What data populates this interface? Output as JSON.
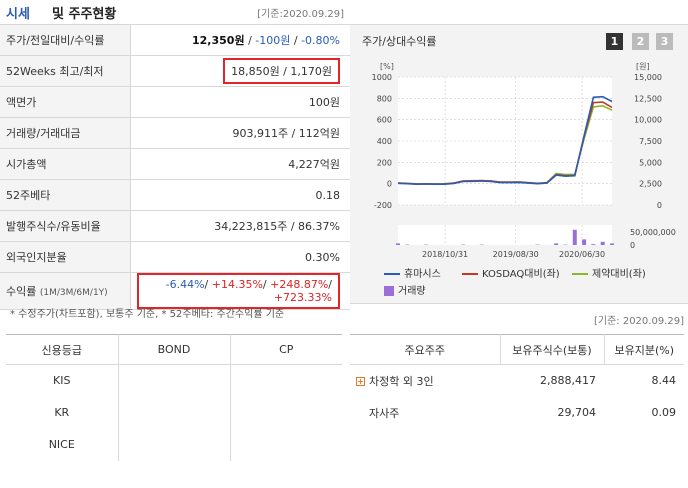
{
  "header": {
    "title_a": "시세",
    "title_b": "및 주주현황",
    "date": "[기준:2020.09.29]"
  },
  "stats": [
    {
      "key": "주가/전일대비/수익률",
      "price": "12,350원",
      "sep1": " / ",
      "change": "-100원",
      "sep2": " / ",
      "rate": "-0.80%"
    },
    {
      "key": "52Weeks 최고/최저",
      "value": "18,850원 / 1,170원"
    },
    {
      "key": "액면가",
      "value": "100원"
    },
    {
      "key": "거래량/거래대금",
      "value": "903,911주 / 112억원"
    },
    {
      "key": "시가총액",
      "value": "4,227억원"
    },
    {
      "key": "52주베타",
      "value": "0.18"
    },
    {
      "key": "발행주식수/유동비율",
      "value": "34,223,815주 / 86.37%"
    },
    {
      "key": "외국인지분율",
      "value": "0.30%"
    },
    {
      "key": "수익률",
      "key_sub": "(1M/3M/6M/1Y)",
      "r1": "-6.44%",
      "r2": "+14.35%",
      "r3": "+248.87%",
      "r4": "+723.33%"
    }
  ],
  "note": "* 수정주가(차트포함), 보통주 기준, * 52주베타: 주간수익률 기준",
  "chart_panel": {
    "title": "주가/상대수익률",
    "pages": [
      "1",
      "2",
      "3"
    ]
  },
  "chart_data": {
    "type": "line",
    "x_ticks": [
      "2018/10/31",
      "2019/08/30",
      "2020/06/30"
    ],
    "y_left_label": "[%]",
    "y_left_ticks": [
      "1000",
      "800",
      "600",
      "400",
      "200",
      "0",
      "-200"
    ],
    "y_right_label": "[원]",
    "y_right_ticks": [
      "15,000",
      "12,500",
      "10,000",
      "7,500",
      "5,000",
      "2,500",
      "0"
    ],
    "volume_tick": "50,000,000",
    "volume_zero": "0",
    "ylim_left": [
      -200,
      1000
    ],
    "ylim_right": [
      0,
      15000
    ],
    "series": [
      {
        "name": "휴마시스",
        "color": "#2b5bb6",
        "values": [
          3,
          0,
          -5,
          -3,
          -5,
          -5,
          2,
          20,
          22,
          25,
          20,
          10,
          10,
          12,
          5,
          0,
          5,
          80,
          70,
          75,
          450,
          810,
          815,
          770
        ]
      },
      {
        "name": "KOSDAQ대비(좌)",
        "color": "#c0392b",
        "values": [
          5,
          2,
          -3,
          -2,
          -3,
          -2,
          5,
          24,
          26,
          28,
          24,
          14,
          14,
          15,
          8,
          2,
          8,
          85,
          75,
          78,
          440,
          760,
          765,
          715
        ]
      },
      {
        "name": "제약대비(좌)",
        "color": "#8cb82b",
        "values": [
          6,
          3,
          -2,
          -1,
          -2,
          -1,
          6,
          26,
          28,
          30,
          26,
          16,
          16,
          17,
          10,
          4,
          10,
          95,
          85,
          88,
          420,
          720,
          730,
          690
        ]
      }
    ],
    "volume": {
      "name": "거래량",
      "color": "#9b6fd6",
      "values": [
        4,
        1,
        0,
        1,
        0,
        0,
        0,
        1,
        0,
        1,
        0,
        0,
        0,
        0,
        0,
        1,
        0,
        4,
        1,
        38,
        14,
        2,
        8,
        4
      ]
    },
    "legend": [
      "휴마시스",
      "KOSDAQ대비(좌)",
      "제약대비(좌)",
      "거래량"
    ]
  },
  "date2": "[기준: 2020.09.29]",
  "credit": {
    "headers": [
      "신용등급",
      "BOND",
      "CP"
    ],
    "rows": [
      "KIS",
      "KR",
      "NICE"
    ]
  },
  "holders": {
    "headers": [
      "주요주주",
      "보유주식수(보통)",
      "보유지분(%)"
    ],
    "rows": [
      {
        "name": "차정학 외 3인",
        "shares": "2,888,417",
        "pct": "8.44"
      },
      {
        "name": "자사주",
        "shares": "29,704",
        "pct": "0.09"
      }
    ]
  }
}
